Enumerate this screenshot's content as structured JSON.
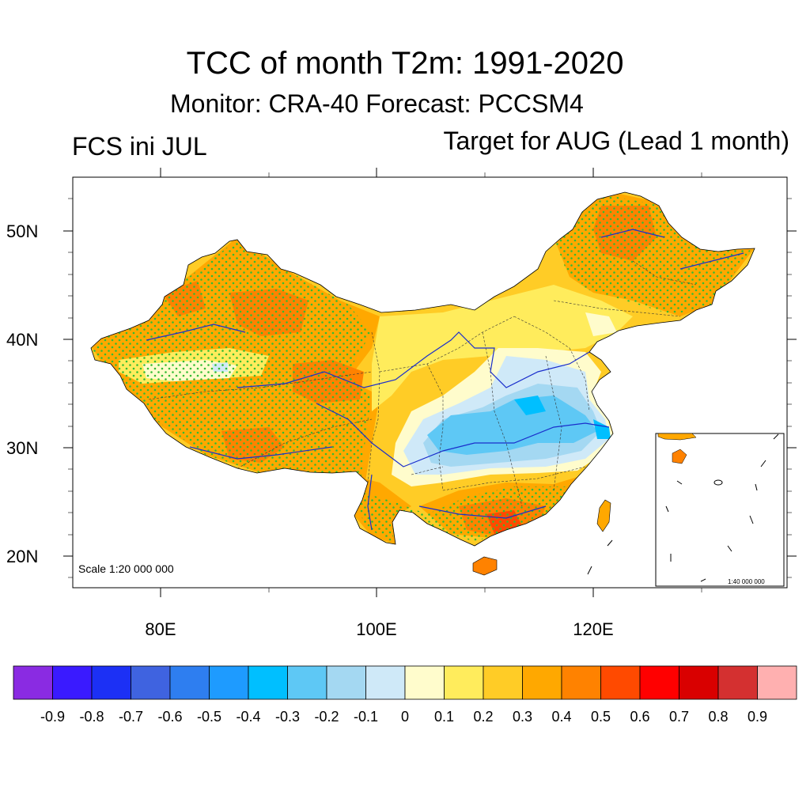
{
  "title": "TCC of month T2m: 1991-2020",
  "subtitle": "Monitor: CRA-40   Forecast: PCCSM4",
  "left_string": "FCS ini JUL",
  "right_string": "Target for AUG (Lead 1 month)",
  "axes": {
    "lat_ticks": [
      "50N",
      "40N",
      "30N",
      "20N"
    ],
    "lon_ticks": [
      "80E",
      "100E",
      "120E"
    ],
    "lat_range": [
      17,
      55
    ],
    "lon_range": [
      72,
      138
    ]
  },
  "scale_main": "Scale 1:20 000 000",
  "scale_inset": "1:40 000 000",
  "colorbar": {
    "labels": [
      "-0.9",
      "-0.8",
      "-0.7",
      "-0.6",
      "-0.5",
      "-0.4",
      "-0.3",
      "-0.2",
      "-0.1",
      "0",
      "0.1",
      "0.2",
      "0.3",
      "0.4",
      "0.5",
      "0.6",
      "0.7",
      "0.8",
      "0.9"
    ],
    "colors": [
      "#8a2be2",
      "#3a1aff",
      "#1c30f5",
      "#3f63e0",
      "#2e7ef0",
      "#1e9bff",
      "#00bfff",
      "#5ec8f5",
      "#a4d8f2",
      "#cfe9f8",
      "#fffccc",
      "#ffec5c",
      "#ffcc26",
      "#ffa800",
      "#ff8200",
      "#ff4a00",
      "#ff0000",
      "#d90000",
      "#d43030",
      "#ffb0b0"
    ]
  },
  "colors": {
    "stipple": "#33bb33",
    "rivers": "#1a2ecc",
    "boundaries": "#000000"
  }
}
